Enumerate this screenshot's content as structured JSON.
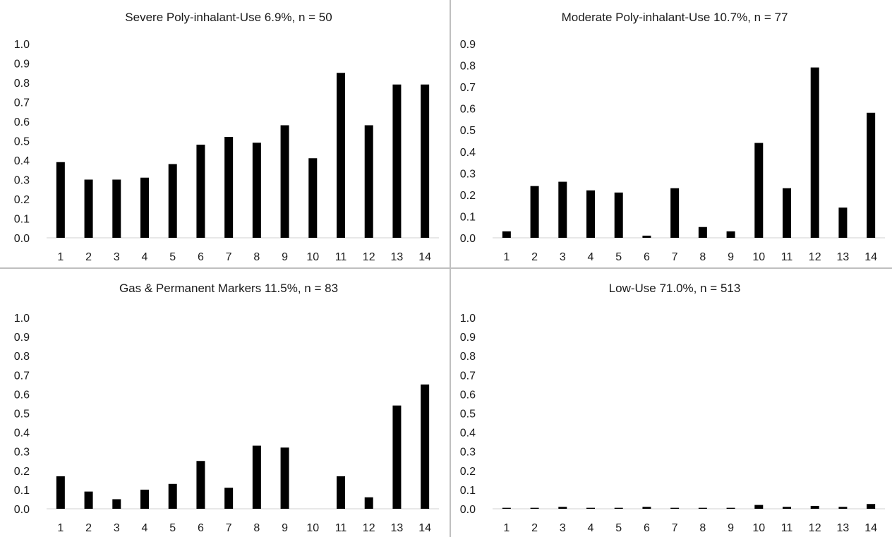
{
  "chart_data": [
    {
      "type": "bar",
      "title": "Severe Poly-inhalant-Use 6.9%, n = 50",
      "categories": [
        "1",
        "2",
        "3",
        "4",
        "5",
        "6",
        "7",
        "8",
        "9",
        "10",
        "11",
        "12",
        "13",
        "14"
      ],
      "values": [
        0.39,
        0.3,
        0.3,
        0.31,
        0.38,
        0.48,
        0.52,
        0.49,
        0.58,
        0.41,
        0.85,
        0.58,
        0.79,
        0.79
      ],
      "ylim": [
        0,
        1.0
      ],
      "yticks": [
        "0.0",
        "0.1",
        "0.2",
        "0.3",
        "0.4",
        "0.5",
        "0.6",
        "0.7",
        "0.8",
        "0.9",
        "1.0"
      ],
      "color": "#000000"
    },
    {
      "type": "bar",
      "title": "Moderate Poly-inhalant-Use 10.7%, n = 77",
      "categories": [
        "1",
        "2",
        "3",
        "4",
        "5",
        "6",
        "7",
        "8",
        "9",
        "10",
        "11",
        "12",
        "13",
        "14"
      ],
      "values": [
        0.03,
        0.24,
        0.26,
        0.22,
        0.21,
        0.01,
        0.23,
        0.05,
        0.03,
        0.44,
        0.23,
        0.79,
        0.14,
        0.58
      ],
      "ylim": [
        0,
        0.9
      ],
      "yticks": [
        "0.0",
        "0.1",
        "0.2",
        "0.3",
        "0.4",
        "0.5",
        "0.6",
        "0.7",
        "0.8",
        "0.9"
      ],
      "color": "#000000"
    },
    {
      "type": "bar",
      "title": "Gas & Permanent Markers 11.5%, n = 83",
      "categories": [
        "1",
        "2",
        "3",
        "4",
        "5",
        "6",
        "7",
        "8",
        "9",
        "10",
        "11",
        "12",
        "13",
        "14"
      ],
      "values": [
        0.17,
        0.09,
        0.05,
        0.1,
        0.13,
        0.25,
        0.11,
        0.33,
        0.32,
        0.0,
        0.17,
        0.06,
        0.54,
        0.65
      ],
      "ylim": [
        0,
        1.0
      ],
      "yticks": [
        "0.0",
        "0.1",
        "0.2",
        "0.3",
        "0.4",
        "0.5",
        "0.6",
        "0.7",
        "0.8",
        "0.9",
        "1.0"
      ],
      "color": "#000000"
    },
    {
      "type": "bar",
      "title": "Low-Use 71.0%, n = 513",
      "categories": [
        "1",
        "2",
        "3",
        "4",
        "5",
        "6",
        "7",
        "8",
        "9",
        "10",
        "11",
        "12",
        "13",
        "14"
      ],
      "values": [
        0.005,
        0.005,
        0.01,
        0.005,
        0.005,
        0.01,
        0.005,
        0.005,
        0.005,
        0.02,
        0.01,
        0.015,
        0.01,
        0.025
      ],
      "ylim": [
        0,
        1.0
      ],
      "yticks": [
        "0.0",
        "0.1",
        "0.2",
        "0.3",
        "0.4",
        "0.5",
        "0.6",
        "0.7",
        "0.8",
        "0.9",
        "1.0"
      ],
      "color": "#000000"
    }
  ]
}
